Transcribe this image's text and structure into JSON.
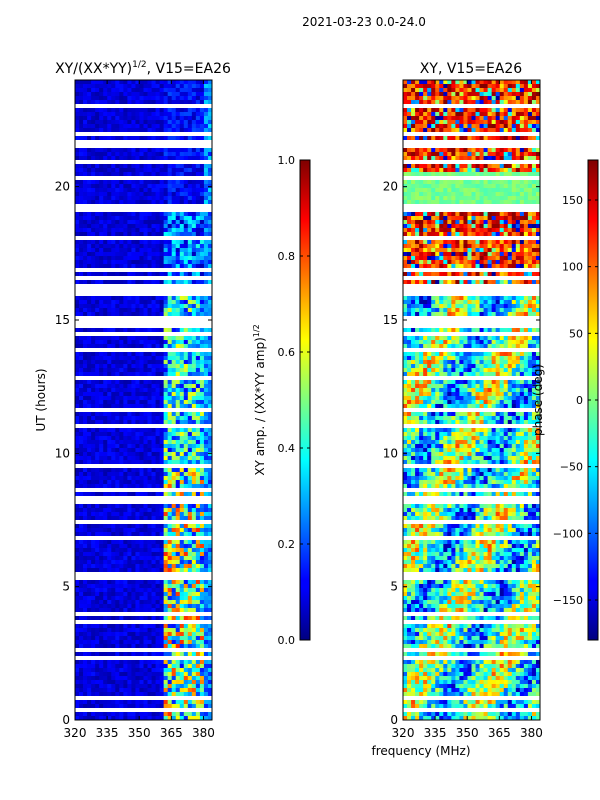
{
  "suptitle": "2021-03-23 0.0-24.0",
  "chart_data": [
    {
      "type": "heatmap",
      "title_main": "XY/(XX*YY)",
      "title_exp": "1/2",
      "title_tail": ", V15=EA26",
      "xlabel": "",
      "ylabel": "UT (hours)",
      "xlim": [
        320,
        384
      ],
      "ylim": [
        0,
        24
      ],
      "xticks": [
        "320",
        "335",
        "350",
        "365",
        "380"
      ],
      "xtick_values": [
        320,
        335,
        350,
        365,
        380
      ],
      "yticks": [
        "0",
        "5",
        "10",
        "15",
        "20"
      ],
      "ytick_values": [
        0,
        5,
        10,
        15,
        20
      ],
      "colorbar": {
        "label_main": "XY amp. / (XX*YY amp)",
        "label_exp": "1/2",
        "ticks": [
          "0.0",
          "0.2",
          "0.4",
          "0.6",
          "0.8",
          "1.0"
        ],
        "tick_values": [
          0.0,
          0.2,
          0.4,
          0.6,
          0.8,
          1.0
        ],
        "range": [
          0.0,
          1.0
        ]
      },
      "colormap": "jet"
    },
    {
      "type": "heatmap",
      "title_main": "XY, V15=EA26",
      "xlabel": "frequency (MHz)",
      "ylabel": "",
      "xlim": [
        320,
        384
      ],
      "ylim": [
        0,
        24
      ],
      "xticks": [
        "320",
        "335",
        "350",
        "365",
        "380"
      ],
      "xtick_values": [
        320,
        335,
        350,
        365,
        380
      ],
      "yticks": [
        "0",
        "5",
        "10",
        "15",
        "20"
      ],
      "ytick_values": [
        0,
        5,
        10,
        15,
        20
      ],
      "colorbar": {
        "label_main": "phase (deg)",
        "ticks": [
          "−150",
          "−100",
          "−50",
          "0",
          "50",
          "100",
          "150"
        ],
        "tick_values": [
          -150,
          -100,
          -50,
          0,
          50,
          100,
          150
        ],
        "range": [
          -180,
          180
        ]
      },
      "colormap": "jet"
    }
  ]
}
